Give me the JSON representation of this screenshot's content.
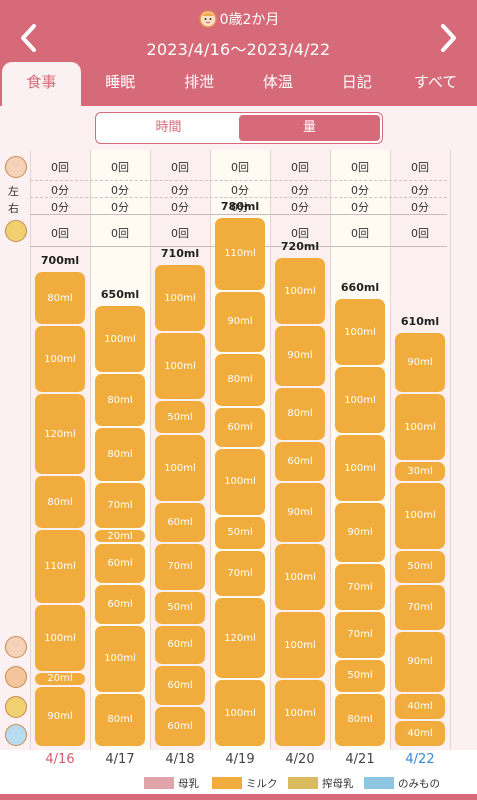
{
  "header": {
    "age": "0歳2か月",
    "range": "2023/4/16〜2023/4/22",
    "prev_icon": "chevron-left-icon",
    "next_icon": "chevron-right-icon"
  },
  "tabs": [
    {
      "label": "食事",
      "active": true
    },
    {
      "label": "睡眠",
      "active": false
    },
    {
      "label": "排泄",
      "active": false
    },
    {
      "label": "体温",
      "active": false
    },
    {
      "label": "日記",
      "active": false
    },
    {
      "label": "すべて",
      "active": false
    }
  ],
  "mode_toggle": {
    "time": "時間",
    "amount": "量",
    "selected": "amount"
  },
  "side_labels": {
    "left": "左",
    "right": "右"
  },
  "days": [
    {
      "date": "4/16",
      "kind": "sun",
      "breast_count": "0回",
      "left": "0分",
      "right": "0分",
      "pumped_count": "0回",
      "total": "700ml",
      "segments": [
        "90ml",
        "20ml",
        "100ml",
        "110ml",
        "80ml",
        "120ml",
        "100ml",
        "80ml"
      ]
    },
    {
      "date": "4/17",
      "kind": "weekday",
      "breast_count": "0回",
      "left": "0分",
      "right": "0分",
      "pumped_count": "0回",
      "total": "650ml",
      "segments": [
        "80ml",
        "100ml",
        "60ml",
        "60ml",
        "20ml",
        "70ml",
        "80ml",
        "80ml",
        "100ml"
      ]
    },
    {
      "date": "4/18",
      "kind": "weekday",
      "breast_count": "0回",
      "left": "0分",
      "right": "0分",
      "pumped_count": "0回",
      "total": "710ml",
      "segments": [
        "60ml",
        "60ml",
        "60ml",
        "50ml",
        "70ml",
        "60ml",
        "100ml",
        "50ml",
        "100ml",
        "100ml"
      ]
    },
    {
      "date": "4/19",
      "kind": "weekday",
      "breast_count": "0回",
      "left": "0分",
      "right": "0分",
      "pumped_count": "0回",
      "total": "780ml",
      "segments": [
        "100ml",
        "120ml",
        "70ml",
        "50ml",
        "100ml",
        "60ml",
        "80ml",
        "90ml",
        "110ml"
      ]
    },
    {
      "date": "4/20",
      "kind": "weekday",
      "breast_count": "0回",
      "left": "0分",
      "right": "0分",
      "pumped_count": "0回",
      "total": "720ml",
      "segments": [
        "100ml",
        "100ml",
        "100ml",
        "90ml",
        "60ml",
        "80ml",
        "90ml",
        "100ml"
      ]
    },
    {
      "date": "4/21",
      "kind": "weekday",
      "breast_count": "0回",
      "left": "0分",
      "right": "0分",
      "pumped_count": "0回",
      "total": "660ml",
      "segments": [
        "80ml",
        "50ml",
        "70ml",
        "70ml",
        "90ml",
        "100ml",
        "100ml",
        "100ml"
      ]
    },
    {
      "date": "4/22",
      "kind": "sat",
      "breast_count": "0回",
      "left": "0分",
      "right": "0分",
      "pumped_count": "0回",
      "total": "610ml",
      "segments": [
        "40ml",
        "40ml",
        "90ml",
        "70ml",
        "50ml",
        "100ml",
        "30ml",
        "100ml",
        "90ml"
      ]
    }
  ],
  "legend": [
    {
      "label": "母乳",
      "color": "#e0a4ab"
    },
    {
      "label": "ミルク",
      "color": "#f0ad3d"
    },
    {
      "label": "搾母乳",
      "color": "#d9bb5e"
    },
    {
      "label": "のみもの",
      "color": "#8ec5e0"
    }
  ],
  "colors": {
    "brand": "#d66a78",
    "milk": "#f0ad3d"
  }
}
